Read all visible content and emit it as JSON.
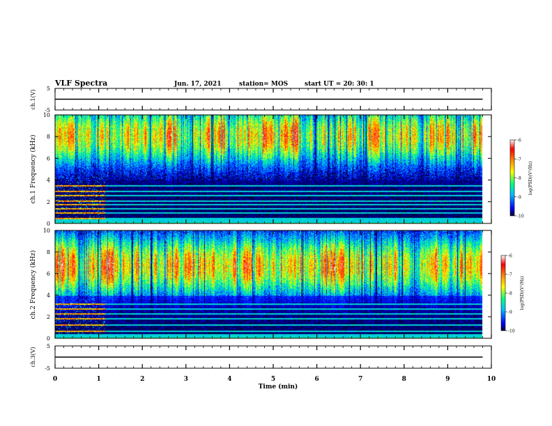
{
  "header": {
    "title": "VLF Spectra",
    "date": "Jun. 17, 2021",
    "station": "station= MOS",
    "start_ut": "start UT =  20: 30: 1"
  },
  "colors": {
    "colormap": [
      "#000033",
      "#0000ff",
      "#00bfff",
      "#00ff80",
      "#ffff00",
      "#ff8000",
      "#ff0000",
      "#ffffff"
    ],
    "trace": "#000000",
    "axis": "#000000"
  },
  "chart_data": [
    {
      "type": "line",
      "panel": "ch1-waveform",
      "ylabel": "ch.1(V)",
      "ylim": [
        -5,
        5
      ],
      "y_ticks": [
        "5",
        "-5"
      ],
      "series": [
        {
          "x": [
            0,
            9.8
          ],
          "y": [
            0,
            0
          ]
        }
      ]
    },
    {
      "type": "heatmap",
      "panel": "ch1-spectrogram",
      "ylabel": "ch.1 Frequency (kHz)",
      "xlim": [
        0,
        10
      ],
      "ylim": [
        0,
        10
      ],
      "y_ticks": [
        "0",
        "2",
        "4",
        "6",
        "8",
        "10"
      ],
      "data_xmax": 9.8,
      "colorbar": {
        "label": "log(PSD)(V²/Hz)",
        "range": [
          -10,
          -6
        ],
        "ticks": [
          "-6",
          "-7",
          "-8",
          "-9",
          "-10"
        ]
      },
      "profile": {
        "peak_khz": [
          7.0,
          9.2
        ],
        "strength": 0.78,
        "interference_end_min": 1.15,
        "lines_khz": [
          0.5,
          1.0,
          1.4,
          1.8,
          2.1,
          2.6,
          3.0,
          3.5
        ]
      }
    },
    {
      "type": "heatmap",
      "panel": "ch2-spectrogram",
      "ylabel": "ch.2 Frequency (kHz)",
      "xlim": [
        0,
        10
      ],
      "ylim": [
        0,
        10
      ],
      "y_ticks": [
        "0",
        "2",
        "4",
        "6",
        "8",
        "10"
      ],
      "data_xmax": 9.8,
      "colorbar": {
        "label": "log(PSD)(V²/Hz)",
        "range": [
          -10,
          -6
        ],
        "ticks": [
          "-6",
          "-7",
          "-8",
          "-9",
          "-10"
        ]
      },
      "profile": {
        "peak_khz": [
          5.5,
          8.0
        ],
        "strength": 0.82,
        "interference_end_min": 1.15,
        "lines_khz": [
          0.7,
          1.3,
          1.9,
          2.3,
          2.8,
          3.2
        ]
      }
    },
    {
      "type": "line",
      "panel": "ch3-waveform",
      "ylabel": "ch.3(V)",
      "xlabel": "Time  (min)",
      "xlim": [
        0,
        10
      ],
      "ylim": [
        -5,
        5
      ],
      "y_ticks": [
        "5",
        "-5"
      ],
      "x_ticks": [
        "0",
        "1",
        "2",
        "3",
        "4",
        "5",
        "6",
        "7",
        "8",
        "9",
        "10"
      ],
      "series": [
        {
          "x": [
            0,
            9.8
          ],
          "y": [
            0,
            0
          ]
        }
      ]
    }
  ]
}
